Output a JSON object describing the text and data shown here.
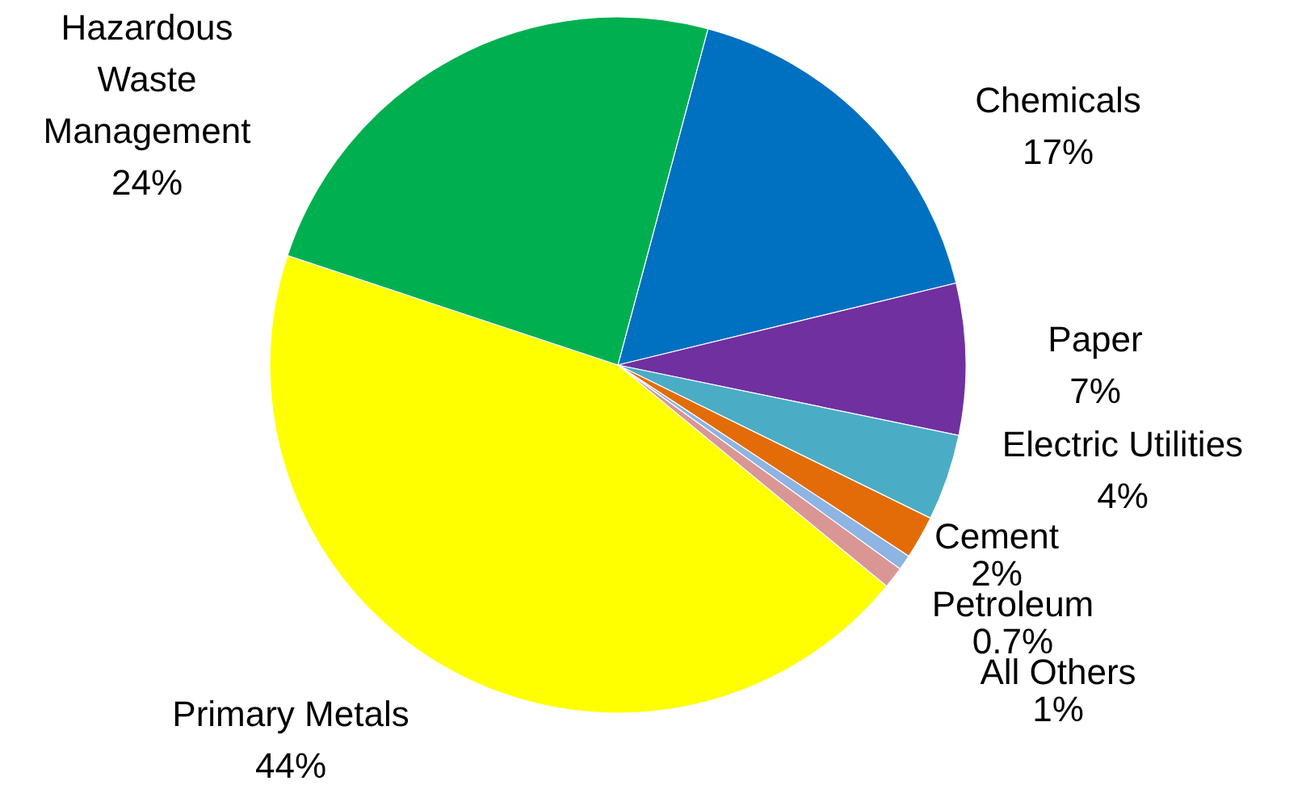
{
  "chart_data": {
    "type": "pie",
    "categories": [
      "Chemicals",
      "Paper",
      "Electric Utilities",
      "Cement",
      "Petroleum",
      "All Others",
      "Primary Metals",
      "Hazardous Waste Management"
    ],
    "values": [
      17,
      7,
      4,
      2,
      0.7,
      1,
      44,
      24
    ],
    "colors": [
      "#0070c0",
      "#7030a0",
      "#4bacc6",
      "#e36c09",
      "#8db4e2",
      "#d99694",
      "#ffff00",
      "#00b050"
    ],
    "value_labels": [
      "17%",
      "7%",
      "4%",
      "2%",
      "0.7%",
      "1%",
      "44%",
      "24%"
    ]
  }
}
